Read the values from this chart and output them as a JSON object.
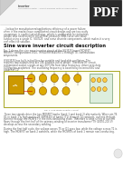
{
  "bg_color": "#ffffff",
  "page_bg": "#ffffff",
  "title": "Sine wave inverter circuit description",
  "title_fontsize": 3.8,
  "title_color": "#111111",
  "body_text_color": "#555555",
  "link_color": "#cc4400",
  "body_fontsize": 1.9,
  "pdf_bg_color": "#2a2a2a",
  "pdf_text": "PDF",
  "pdf_text_color": "#ffffff",
  "header_line1": "inverter",
  "header_line2": "Sine Wave Inverter - Circuit Diagram With Full Explanation",
  "header_bg": "#f5f5f5",
  "fold_color": "#e0e0e0",
  "circuit_bg": "#fffff0",
  "circuit_border": "#999900",
  "ic_color": "#cc9900",
  "transistor_color": "#ddaa00",
  "right_box_color": "#ddeedd"
}
